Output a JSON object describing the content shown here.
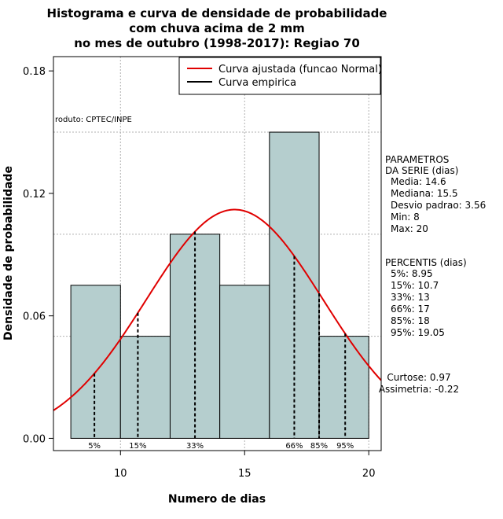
{
  "chart_data": {
    "type": "bar",
    "title_lines": [
      "Histograma e curva de densidade de probabilidade",
      "com chuva acima de 2 mm",
      "no mes de outubro (1998-2017): Regiao 70"
    ],
    "xlabel": "Numero de dias",
    "ylabel": "Densidade de probabilidade",
    "xlim": [
      7.3,
      20.5
    ],
    "ylim": [
      -0.006,
      0.187
    ],
    "x_ticks": [
      10,
      15,
      20
    ],
    "y_ticks": [
      0.0,
      0.06,
      0.12,
      0.18
    ],
    "y_tick_labels": [
      "0.00",
      "0.06",
      "0.12",
      "0.18"
    ],
    "bins": [
      {
        "start": 8,
        "end": 10,
        "density": 0.075
      },
      {
        "start": 10,
        "end": 12,
        "density": 0.05
      },
      {
        "start": 12,
        "end": 14,
        "density": 0.1
      },
      {
        "start": 14,
        "end": 16,
        "density": 0.075
      },
      {
        "start": 16,
        "end": 18,
        "density": 0.15
      },
      {
        "start": 18,
        "end": 20,
        "density": 0.05
      }
    ],
    "h_gridlines": [
      0.05,
      0.1,
      0.15
    ],
    "v_gridlines": [
      10,
      15,
      20
    ],
    "fitted_curve": {
      "name": "Curva ajustada (funcao Normal)",
      "mean": 14.6,
      "sd": 3.56,
      "color": "#e00000"
    },
    "empirical_curve": {
      "name": "Curva empirica",
      "color": "#000000"
    },
    "percentile_lines": [
      {
        "label": "5%",
        "x": 8.95
      },
      {
        "label": "15%",
        "x": 10.7
      },
      {
        "label": "33%",
        "x": 13
      },
      {
        "label": "66%",
        "x": 17
      },
      {
        "label": "85%",
        "x": 18
      },
      {
        "label": "95%",
        "x": 19.05
      }
    ],
    "product_label": "roduto: CPTEC/INPE",
    "parametros": {
      "heading": [
        "PARAMETROS",
        "DA SERIE (dias)"
      ],
      "lines": [
        "Media: 14.6",
        "Mediana: 15.5",
        "Desvio padrao: 3.56",
        "Min: 8",
        "Max: 20"
      ]
    },
    "percentis": {
      "heading": "PERCENTIS (dias)",
      "lines": [
        "5%: 8.95",
        "15%: 10.7",
        "33%: 13",
        "66%: 17",
        "85%: 18",
        "95%: 19.05"
      ]
    },
    "shape_stats": [
      "Curtose: 0.97",
      "Assimetria: -0.22"
    ],
    "colors": {
      "bar_fill": "#b5cece",
      "bar_stroke": "#000000",
      "grid": "#b0b0b0"
    }
  }
}
